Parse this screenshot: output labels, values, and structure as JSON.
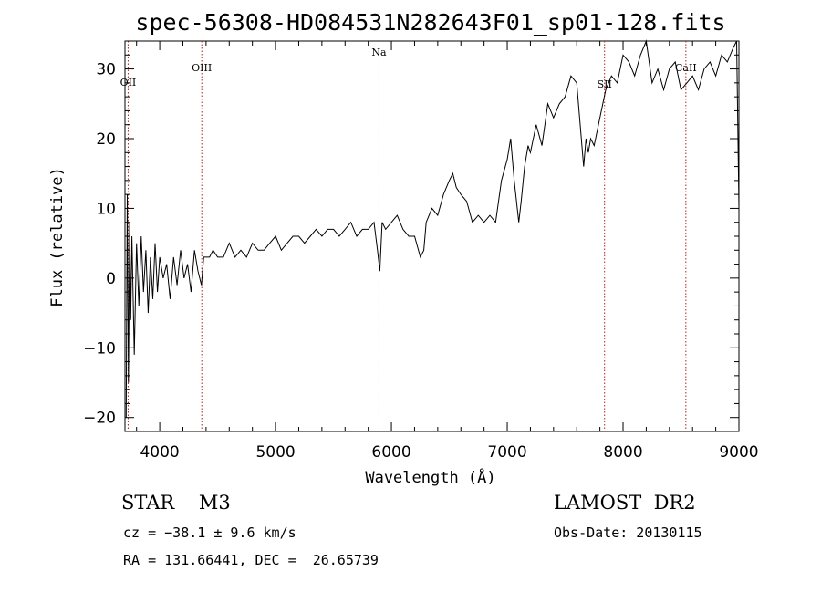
{
  "chart_data": {
    "type": "line",
    "title": "spec-56308-HD084531N282643F01_sp01-128.fits",
    "xlabel": "Wavelength (Å)",
    "ylabel": "Flux (relative)",
    "xlim": [
      3700,
      9000
    ],
    "ylim": [
      -22,
      34
    ],
    "xticks": [
      4000,
      5000,
      6000,
      7000,
      8000,
      9000
    ],
    "yticks": [
      -20,
      -10,
      0,
      10,
      20,
      30
    ],
    "grid": false,
    "line_color": "#000000",
    "marker_color": "#b22222",
    "series": [
      {
        "x": [
          3710,
          3720,
          3730,
          3740,
          3750,
          3760,
          3780,
          3800,
          3820,
          3840,
          3860,
          3880,
          3900,
          3920,
          3940,
          3960,
          3980,
          4000,
          4030,
          4060,
          4090,
          4120,
          4150,
          4180,
          4210,
          4240,
          4270,
          4300,
          4330,
          4360,
          4380,
          4400,
          4430,
          4460,
          4500,
          4550,
          4600,
          4650,
          4700,
          4750,
          4800,
          4850,
          4900,
          4950,
          5000,
          5050,
          5100,
          5150,
          5200,
          5250,
          5300,
          5350,
          5400,
          5450,
          5500,
          5550,
          5600,
          5650,
          5700,
          5750,
          5800,
          5850,
          5880,
          5900,
          5920,
          5950,
          6000,
          6050,
          6100,
          6150,
          6200,
          6250,
          6280,
          6300,
          6350,
          6400,
          6450,
          6500,
          6530,
          6560,
          6600,
          6650,
          6700,
          6750,
          6800,
          6850,
          6900,
          6950,
          7000,
          7030,
          7060,
          7100,
          7120,
          7150,
          7180,
          7200,
          7250,
          7300,
          7350,
          7400,
          7450,
          7500,
          7550,
          7600,
          7630,
          7660,
          7680,
          7700,
          7720,
          7750,
          7800,
          7850,
          7900,
          7950,
          8000,
          8050,
          8100,
          8150,
          8200,
          8250,
          8300,
          8350,
          8400,
          8450,
          8500,
          8550,
          8600,
          8650,
          8700,
          8750,
          8800,
          8850,
          8900,
          8950,
          8980,
          9000
        ],
        "y": [
          -20,
          12,
          -15,
          8,
          -6,
          6,
          -11,
          5,
          -4,
          6,
          -2,
          4,
          -5,
          3,
          -3,
          5,
          -2,
          3,
          0,
          2,
          -3,
          3,
          -1,
          4,
          0,
          2,
          -2,
          4,
          1,
          -1,
          3,
          3,
          3,
          4,
          3,
          3,
          5,
          3,
          4,
          3,
          5,
          4,
          4,
          5,
          6,
          4,
          5,
          6,
          6,
          5,
          6,
          7,
          6,
          7,
          7,
          6,
          7,
          8,
          6,
          7,
          7,
          8,
          4,
          1,
          8,
          7,
          8,
          9,
          7,
          6,
          6,
          3,
          4,
          8,
          10,
          9,
          12,
          14,
          15,
          13,
          12,
          11,
          8,
          9,
          8,
          9,
          8,
          14,
          17,
          20,
          14,
          8,
          11,
          16,
          19,
          18,
          22,
          19,
          25,
          23,
          25,
          26,
          29,
          28,
          22,
          16,
          20,
          18,
          20,
          19,
          23,
          27,
          29,
          28,
          32,
          31,
          29,
          32,
          34,
          28,
          30,
          27,
          30,
          31,
          27,
          28,
          29,
          27,
          30,
          31,
          29,
          32,
          31,
          33,
          34,
          10
        ]
      }
    ],
    "annotations": [
      {
        "label": "OII",
        "x": 3727
      },
      {
        "label": "OIII",
        "x": 4363
      },
      {
        "label": "Na",
        "x": 5893
      },
      {
        "label": "SII",
        "x": 7840
      },
      {
        "label": "CaII",
        "x": 8542
      }
    ]
  },
  "footer": {
    "object": "STAR    M3",
    "survey": "LAMOST  DR2",
    "velocity": "cz = −38.1 ± 9.6 km/s",
    "obs_date": "Obs-Date: 20130115",
    "coords": "RA = 131.66441, DEC =  26.65739"
  }
}
